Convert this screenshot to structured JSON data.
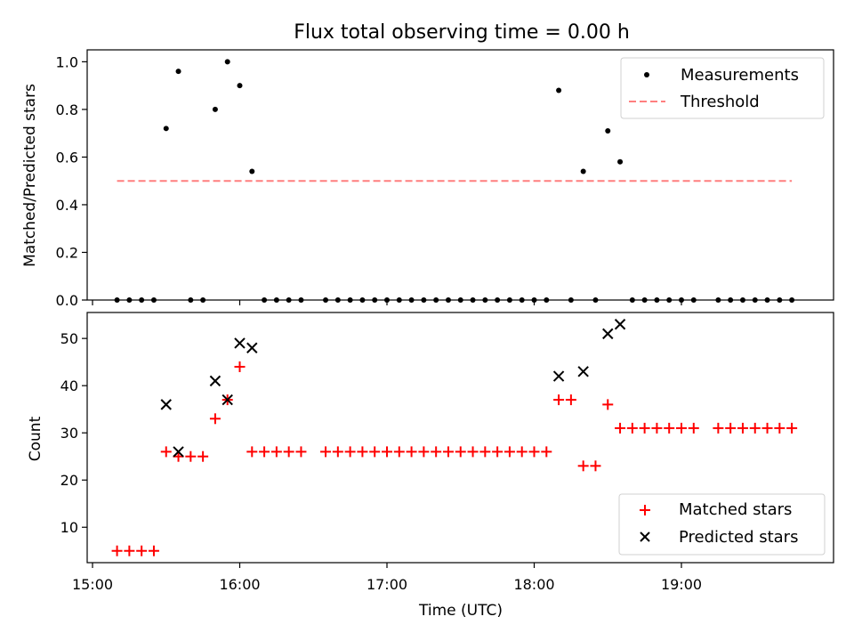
{
  "chart_data": [
    {
      "type": "scatter",
      "title": "Flux total observing time = 0.00 h",
      "xlabel": "",
      "ylabel": "Matched/Predicted stars",
      "xlim": [
        "15:00",
        "20:00"
      ],
      "ylim": [
        0,
        1.05
      ],
      "yticks": [
        "0.0",
        "0.2",
        "0.4",
        "0.6",
        "0.8",
        "1.0"
      ],
      "legend_placement": "upper-right",
      "series": [
        {
          "name": "Measurements",
          "marker": "dot",
          "color": "#000000",
          "points": [
            [
              "15:10",
              0
            ],
            [
              "15:15",
              0
            ],
            [
              "15:20",
              0
            ],
            [
              "15:25",
              0
            ],
            [
              "15:30",
              0.72
            ],
            [
              "15:35",
              0.96
            ],
            [
              "15:40",
              0
            ],
            [
              "15:45",
              0
            ],
            [
              "15:50",
              0.8
            ],
            [
              "15:55",
              1.0
            ],
            [
              "16:00",
              0.9
            ],
            [
              "16:05",
              0.54
            ],
            [
              "16:10",
              0
            ],
            [
              "16:15",
              0
            ],
            [
              "16:20",
              0
            ],
            [
              "16:25",
              0
            ],
            [
              "16:35",
              0
            ],
            [
              "16:40",
              0
            ],
            [
              "16:45",
              0
            ],
            [
              "16:50",
              0
            ],
            [
              "16:55",
              0
            ],
            [
              "17:00",
              0
            ],
            [
              "17:05",
              0
            ],
            [
              "17:10",
              0
            ],
            [
              "17:15",
              0
            ],
            [
              "17:20",
              0
            ],
            [
              "17:25",
              0
            ],
            [
              "17:30",
              0
            ],
            [
              "17:35",
              0
            ],
            [
              "17:40",
              0
            ],
            [
              "17:45",
              0
            ],
            [
              "17:50",
              0
            ],
            [
              "17:55",
              0
            ],
            [
              "18:00",
              0
            ],
            [
              "18:05",
              0
            ],
            [
              "18:10",
              0.88
            ],
            [
              "18:15",
              0
            ],
            [
              "18:20",
              0.54
            ],
            [
              "18:25",
              0
            ],
            [
              "18:30",
              0.71
            ],
            [
              "18:35",
              0.58
            ],
            [
              "18:40",
              0
            ],
            [
              "18:45",
              0
            ],
            [
              "18:50",
              0
            ],
            [
              "18:55",
              0
            ],
            [
              "19:00",
              0
            ],
            [
              "19:05",
              0
            ],
            [
              "19:15",
              0
            ],
            [
              "19:20",
              0
            ],
            [
              "19:25",
              0
            ],
            [
              "19:30",
              0
            ],
            [
              "19:35",
              0
            ],
            [
              "19:40",
              0
            ],
            [
              "19:45",
              0
            ]
          ]
        },
        {
          "name": "Threshold",
          "style": "dashed-line",
          "color": "#ff7f7f",
          "points": [
            [
              "15:10",
              0.5
            ],
            [
              "19:45",
              0.5
            ]
          ]
        }
      ]
    },
    {
      "type": "scatter",
      "title": "",
      "xlabel": "Time (UTC)",
      "ylabel": "Count",
      "xlim": [
        "15:00",
        "20:00"
      ],
      "ylim": [
        2.5,
        55.5
      ],
      "yticks": [
        "10",
        "20",
        "30",
        "40",
        "50"
      ],
      "xticks": [
        "15:00",
        "16:00",
        "17:00",
        "18:00",
        "19:00"
      ],
      "legend_placement": "lower-right",
      "series": [
        {
          "name": "Matched stars",
          "marker": "plus",
          "color": "#ff0000",
          "points": [
            [
              "15:10",
              5
            ],
            [
              "15:15",
              5
            ],
            [
              "15:20",
              5
            ],
            [
              "15:25",
              5
            ],
            [
              "15:30",
              26
            ],
            [
              "15:35",
              25
            ],
            [
              "15:40",
              25
            ],
            [
              "15:45",
              25
            ],
            [
              "15:50",
              33
            ],
            [
              "15:55",
              37
            ],
            [
              "16:00",
              44
            ],
            [
              "16:05",
              26
            ],
            [
              "16:10",
              26
            ],
            [
              "16:15",
              26
            ],
            [
              "16:20",
              26
            ],
            [
              "16:25",
              26
            ],
            [
              "16:35",
              26
            ],
            [
              "16:40",
              26
            ],
            [
              "16:45",
              26
            ],
            [
              "16:50",
              26
            ],
            [
              "16:55",
              26
            ],
            [
              "17:00",
              26
            ],
            [
              "17:05",
              26
            ],
            [
              "17:10",
              26
            ],
            [
              "17:15",
              26
            ],
            [
              "17:20",
              26
            ],
            [
              "17:25",
              26
            ],
            [
              "17:30",
              26
            ],
            [
              "17:35",
              26
            ],
            [
              "17:40",
              26
            ],
            [
              "17:45",
              26
            ],
            [
              "17:50",
              26
            ],
            [
              "17:55",
              26
            ],
            [
              "18:00",
              26
            ],
            [
              "18:05",
              26
            ],
            [
              "18:10",
              37
            ],
            [
              "18:15",
              37
            ],
            [
              "18:20",
              23
            ],
            [
              "18:25",
              23
            ],
            [
              "18:30",
              36
            ],
            [
              "18:35",
              31
            ],
            [
              "18:40",
              31
            ],
            [
              "18:45",
              31
            ],
            [
              "18:50",
              31
            ],
            [
              "18:55",
              31
            ],
            [
              "19:00",
              31
            ],
            [
              "19:05",
              31
            ],
            [
              "19:15",
              31
            ],
            [
              "19:20",
              31
            ],
            [
              "19:25",
              31
            ],
            [
              "19:30",
              31
            ],
            [
              "19:35",
              31
            ],
            [
              "19:40",
              31
            ],
            [
              "19:45",
              31
            ]
          ]
        },
        {
          "name": "Predicted stars",
          "marker": "x",
          "color": "#000000",
          "points": [
            [
              "15:30",
              36
            ],
            [
              "15:35",
              26
            ],
            [
              "15:50",
              41
            ],
            [
              "15:55",
              37
            ],
            [
              "16:00",
              49
            ],
            [
              "16:05",
              48
            ],
            [
              "18:10",
              42
            ],
            [
              "18:20",
              43
            ],
            [
              "18:30",
              51
            ],
            [
              "18:35",
              53
            ]
          ]
        }
      ]
    }
  ]
}
